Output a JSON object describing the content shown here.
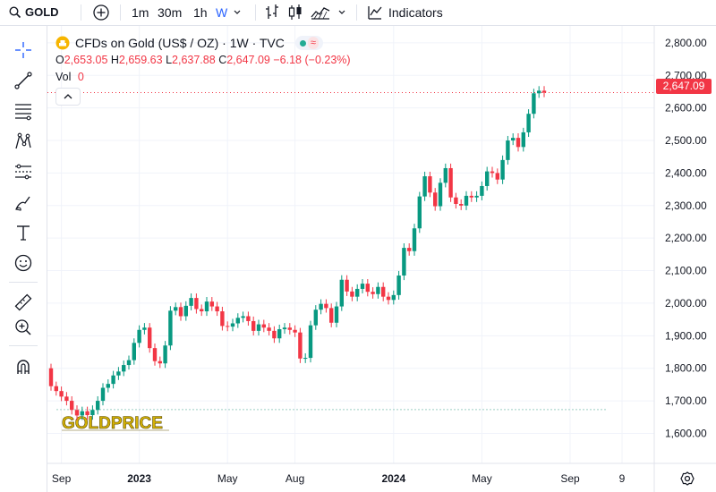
{
  "toolbar": {
    "symbol": "GOLD",
    "intervals": [
      "1m",
      "30m",
      "1h",
      "W"
    ],
    "active_interval": "W",
    "indicators_label": "Indicators"
  },
  "legend": {
    "title": "CFDs on Gold (US$ / OZ) · 1W · TVC",
    "o_label": "O",
    "o": "2,653.05",
    "h_label": "H",
    "h": "2,659.63",
    "l_label": "L",
    "l": "2,637.88",
    "c_label": "C",
    "c": "2,647.09",
    "change": "−6.18 (−0.23%)",
    "vol_label": "Vol",
    "vol_value": "0"
  },
  "last_price_tag": "2,647.09",
  "watermark": "GOLDPRICE",
  "chart_data": {
    "type": "candlestick",
    "ylim": [
      1560,
      2830
    ],
    "y_ticks": [
      1600,
      1700,
      1800,
      1900,
      2000,
      2100,
      2200,
      2300,
      2400,
      2500,
      2600,
      2700,
      2800
    ],
    "y_tick_labels": [
      "1,600.00",
      "1,700.00",
      "1,800.00",
      "1,900.00",
      "2,000.00",
      "2,100.00",
      "2,200.00",
      "2,300.00",
      "2,400.00",
      "2,500.00",
      "2,600.00",
      "2,700.00",
      "2,800.00"
    ],
    "x_tick_labels": [
      {
        "label": "Sep",
        "index": 2
      },
      {
        "label": "2023",
        "index": 17
      },
      {
        "label": "May",
        "index": 34
      },
      {
        "label": "Aug",
        "index": 47
      },
      {
        "label": "2024",
        "index": 66
      },
      {
        "label": "May",
        "index": 83
      },
      {
        "label": "Sep",
        "index": 100
      },
      {
        "label": "9",
        "index": 110
      }
    ],
    "last_price": 2647.09,
    "dotted_level": 1673,
    "colors": {
      "up": "#089981",
      "down": "#f23645"
    },
    "candles": [
      {
        "o": 1800,
        "c": 1745
      },
      {
        "o": 1745,
        "c": 1730
      },
      {
        "o": 1730,
        "c": 1713
      },
      {
        "o": 1713,
        "c": 1700
      },
      {
        "o": 1700,
        "c": 1672
      },
      {
        "o": 1672,
        "c": 1655
      },
      {
        "o": 1655,
        "c": 1668
      },
      {
        "o": 1668,
        "c": 1656
      },
      {
        "o": 1656,
        "c": 1672
      },
      {
        "o": 1672,
        "c": 1700
      },
      {
        "o": 1700,
        "c": 1740
      },
      {
        "o": 1740,
        "c": 1752
      },
      {
        "o": 1752,
        "c": 1778
      },
      {
        "o": 1778,
        "c": 1790
      },
      {
        "o": 1790,
        "c": 1810
      },
      {
        "o": 1810,
        "c": 1825
      },
      {
        "o": 1825,
        "c": 1878
      },
      {
        "o": 1878,
        "c": 1918
      },
      {
        "o": 1918,
        "c": 1925
      },
      {
        "o": 1925,
        "c": 1862
      },
      {
        "o": 1862,
        "c": 1822
      },
      {
        "o": 1822,
        "c": 1815
      },
      {
        "o": 1815,
        "c": 1870
      },
      {
        "o": 1870,
        "c": 1977
      },
      {
        "o": 1977,
        "c": 1988
      },
      {
        "o": 1988,
        "c": 1960
      },
      {
        "o": 1960,
        "c": 1992
      },
      {
        "o": 1992,
        "c": 2016
      },
      {
        "o": 2016,
        "c": 1982
      },
      {
        "o": 1982,
        "c": 1975
      },
      {
        "o": 1975,
        "c": 2005
      },
      {
        "o": 2005,
        "c": 1990
      },
      {
        "o": 1990,
        "c": 1975
      },
      {
        "o": 1975,
        "c": 1930
      },
      {
        "o": 1930,
        "c": 1928
      },
      {
        "o": 1928,
        "c": 1938
      },
      {
        "o": 1938,
        "c": 1955
      },
      {
        "o": 1955,
        "c": 1960
      },
      {
        "o": 1960,
        "c": 1945
      },
      {
        "o": 1945,
        "c": 1915
      },
      {
        "o": 1915,
        "c": 1935
      },
      {
        "o": 1935,
        "c": 1925
      },
      {
        "o": 1925,
        "c": 1915
      },
      {
        "o": 1915,
        "c": 1892
      },
      {
        "o": 1892,
        "c": 1920
      },
      {
        "o": 1920,
        "c": 1925
      },
      {
        "o": 1925,
        "c": 1918
      },
      {
        "o": 1918,
        "c": 1910
      },
      {
        "o": 1910,
        "c": 1830
      },
      {
        "o": 1830,
        "c": 1832
      },
      {
        "o": 1832,
        "c": 1932
      },
      {
        "o": 1932,
        "c": 1980
      },
      {
        "o": 1980,
        "c": 1998
      },
      {
        "o": 1998,
        "c": 1985
      },
      {
        "o": 1985,
        "c": 1940
      },
      {
        "o": 1940,
        "c": 1990
      },
      {
        "o": 1990,
        "c": 2072
      },
      {
        "o": 2072,
        "c": 2036
      },
      {
        "o": 2036,
        "c": 2020
      },
      {
        "o": 2020,
        "c": 2044
      },
      {
        "o": 2044,
        "c": 2060
      },
      {
        "o": 2060,
        "c": 2035
      },
      {
        "o": 2035,
        "c": 2028
      },
      {
        "o": 2028,
        "c": 2050
      },
      {
        "o": 2050,
        "c": 2020
      },
      {
        "o": 2020,
        "c": 2010
      },
      {
        "o": 2010,
        "c": 2025
      },
      {
        "o": 2025,
        "c": 2085
      },
      {
        "o": 2085,
        "c": 2170
      },
      {
        "o": 2170,
        "c": 2160
      },
      {
        "o": 2160,
        "c": 2230
      },
      {
        "o": 2230,
        "c": 2328
      },
      {
        "o": 2328,
        "c": 2390
      },
      {
        "o": 2390,
        "c": 2340
      },
      {
        "o": 2340,
        "c": 2298
      },
      {
        "o": 2298,
        "c": 2370
      },
      {
        "o": 2370,
        "c": 2415
      },
      {
        "o": 2415,
        "c": 2325
      },
      {
        "o": 2325,
        "c": 2305
      },
      {
        "o": 2305,
        "c": 2300
      },
      {
        "o": 2300,
        "c": 2330
      },
      {
        "o": 2330,
        "c": 2325
      },
      {
        "o": 2325,
        "c": 2330
      },
      {
        "o": 2330,
        "c": 2360
      },
      {
        "o": 2360,
        "c": 2405
      },
      {
        "o": 2405,
        "c": 2400
      },
      {
        "o": 2400,
        "c": 2380
      },
      {
        "o": 2380,
        "c": 2440
      },
      {
        "o": 2440,
        "c": 2500
      },
      {
        "o": 2500,
        "c": 2508
      },
      {
        "o": 2508,
        "c": 2480
      },
      {
        "o": 2480,
        "c": 2525
      },
      {
        "o": 2525,
        "c": 2582
      },
      {
        "o": 2582,
        "c": 2645
      },
      {
        "o": 2645,
        "c": 2653
      },
      {
        "o": 2653,
        "c": 2647.09
      }
    ]
  }
}
